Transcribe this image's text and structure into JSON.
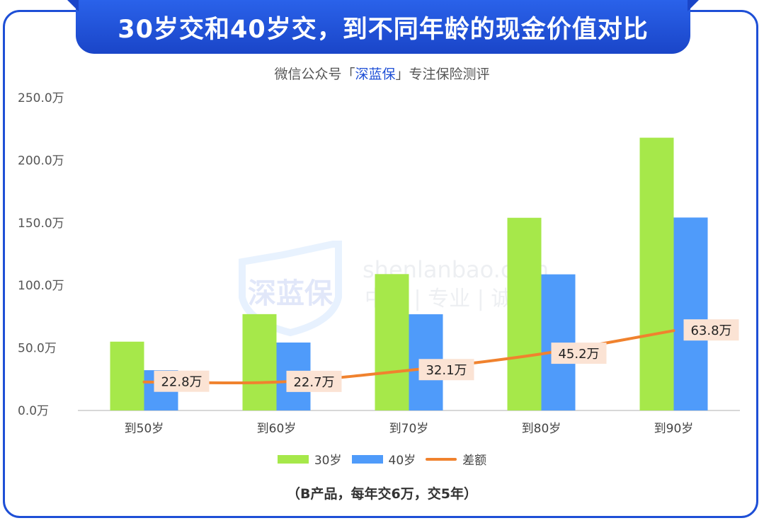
{
  "header": {
    "title": "30岁交和40岁交，到不同年龄的现金价值对比",
    "subtitle_prefix": "微信公众号「",
    "subtitle_brand": "深蓝保",
    "subtitle_suffix": "」专注保险测评"
  },
  "footnote": "（B产品，每年交6万，交5年）",
  "watermark": {
    "logo_text": "深蓝保",
    "domain": "shenlanbao.com",
    "slogan": "中立 | 专业 | 诚信"
  },
  "colors": {
    "series_30": "#a6e84a",
    "series_40": "#4f9bfa",
    "diff_line": "#f0822e",
    "diff_label_bg": "#fbe3d4"
  },
  "chart_data": {
    "type": "bar",
    "categories": [
      "到50岁",
      "到60岁",
      "到70岁",
      "到80岁",
      "到90岁"
    ],
    "series": [
      {
        "name": "30岁",
        "values": [
          55.0,
          77.0,
          109.0,
          154.0,
          218.0
        ]
      },
      {
        "name": "40岁",
        "values": [
          32.2,
          54.3,
          76.9,
          108.8,
          154.2
        ]
      }
    ],
    "line_series": {
      "name": "差额",
      "values": [
        22.8,
        22.7,
        32.1,
        45.2,
        63.8
      ],
      "label_suffix": "万"
    },
    "y_ticks": [
      "0.0万",
      "50.0万",
      "100.0万",
      "150.0万",
      "200.0万",
      "250.0万"
    ],
    "ylim": [
      0,
      250
    ],
    "legend_position": "bottom",
    "grid": false
  }
}
